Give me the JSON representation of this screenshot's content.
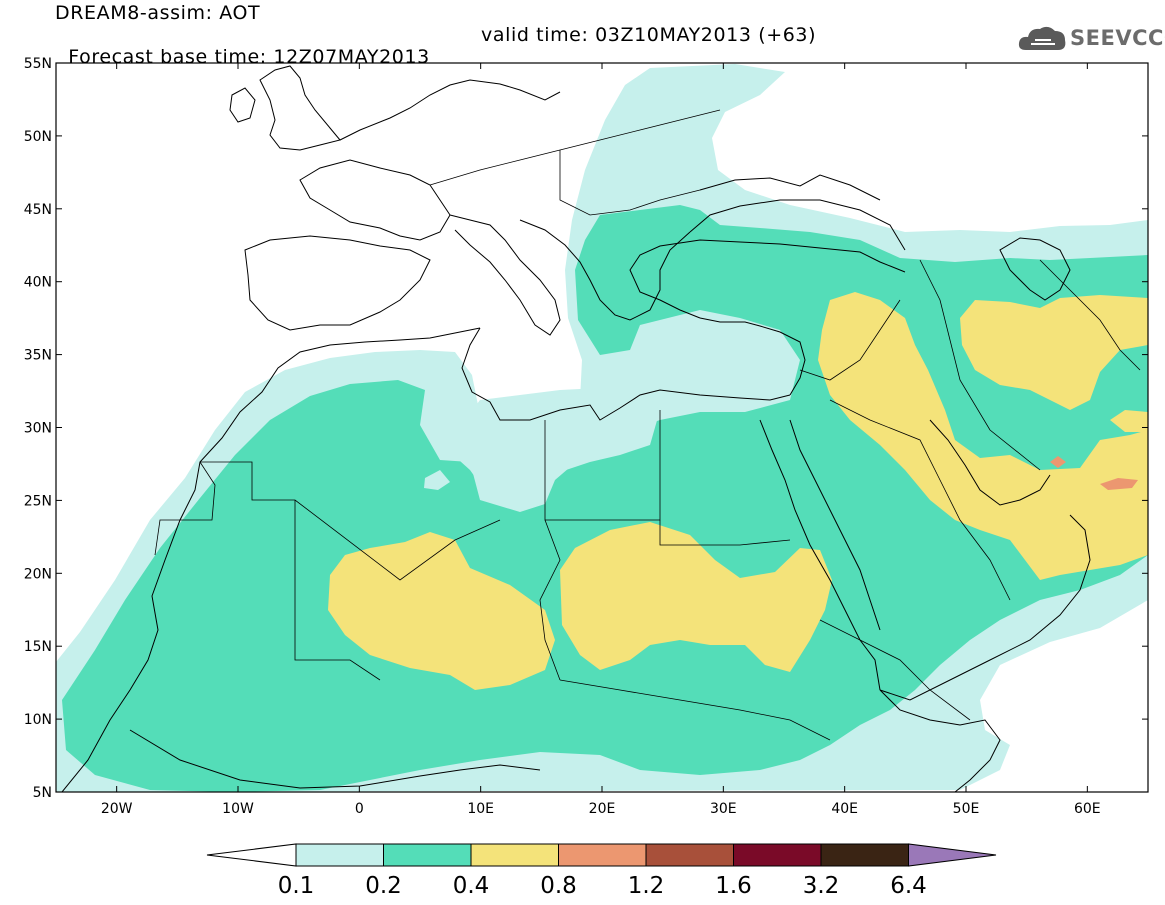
{
  "header": {
    "title": "DREAM8-assim: AOT",
    "base_time": "Forecast base time: 12Z07MAY2013",
    "valid_time": "valid time: 03Z10MAY2013 (+63)"
  },
  "logo": {
    "text": "SEEVCCC",
    "icon": "cloud-icon"
  },
  "map": {
    "lat_labels": [
      "55N",
      "50N",
      "45N",
      "40N",
      "35N",
      "30N",
      "25N",
      "20N",
      "15N",
      "10N",
      "5N"
    ],
    "lon_labels": [
      "20W",
      "10W",
      "0",
      "10E",
      "20E",
      "30E",
      "40E",
      "50E",
      "60E"
    ],
    "lon_range": [
      -25,
      65
    ],
    "lat_range": [
      5,
      55
    ]
  },
  "colorbar": {
    "levels": [
      "0.1",
      "0.2",
      "0.4",
      "0.8",
      "1.2",
      "1.6",
      "3.2",
      "6.4"
    ],
    "colors": [
      "#ffffff",
      "#c6f0ec",
      "#54ddb8",
      "#f4e37a",
      "#ec9770",
      "#a8503a",
      "#7a0a28",
      "#3a2414",
      "#9a78b8"
    ]
  }
}
